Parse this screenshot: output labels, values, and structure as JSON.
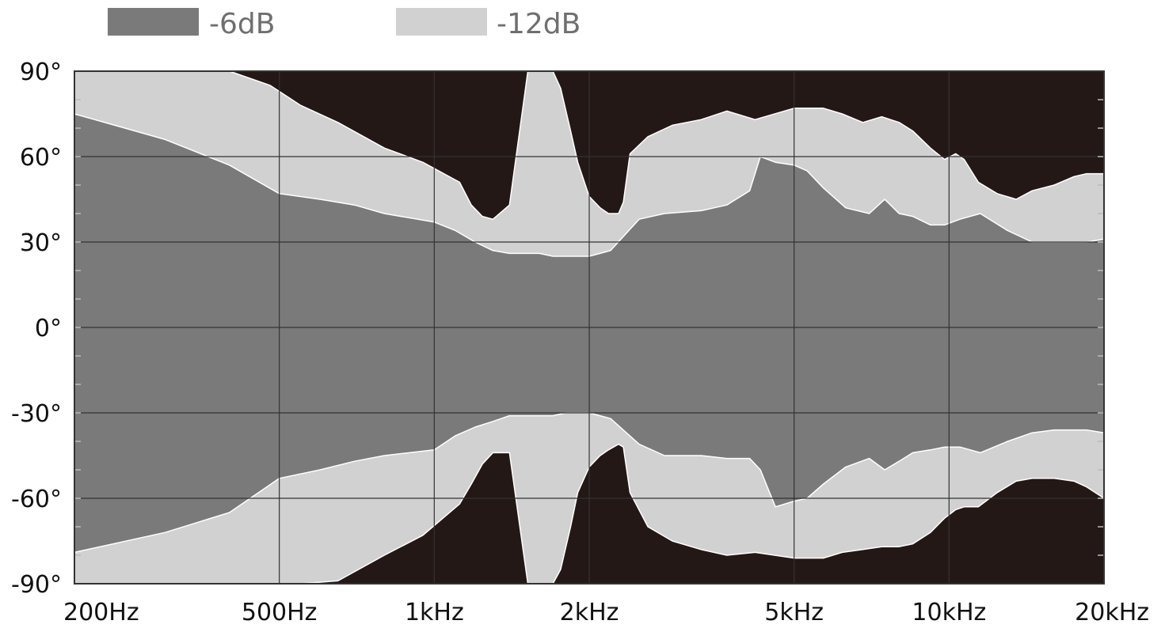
{
  "chart_data": {
    "type": "area",
    "title": "",
    "xlabel": "",
    "ylabel": "",
    "x_scale": "log",
    "xlim_hz": [
      200,
      20000
    ],
    "ylim": [
      -90,
      90
    ],
    "grid": true,
    "legend_position": "top-left",
    "x_ticks": [
      {
        "value": 200,
        "label": "200Hz"
      },
      {
        "value": 500,
        "label": "500Hz"
      },
      {
        "value": 1000,
        "label": "1kHz"
      },
      {
        "value": 2000,
        "label": "2kHz"
      },
      {
        "value": 5000,
        "label": "5kHz"
      },
      {
        "value": 10000,
        "label": "10kHz"
      },
      {
        "value": 20000,
        "label": "20kHz"
      }
    ],
    "y_ticks": [
      {
        "value": 90,
        "label": "90°"
      },
      {
        "value": 60,
        "label": "60°"
      },
      {
        "value": 30,
        "label": "30°"
      },
      {
        "value": 0,
        "label": "0°"
      },
      {
        "value": -30,
        "label": "-30°"
      },
      {
        "value": -60,
        "label": "-60°"
      },
      {
        "value": -90,
        "label": "-90°"
      }
    ],
    "colors": {
      "above_12db": "#231815",
      "grid": "#333333",
      "plot_border": "#333333"
    },
    "series": [
      {
        "name": "-12dB",
        "color": "#d1d1d1",
        "x": [
          200,
          300,
          400,
          480,
          550,
          650,
          800,
          950,
          1120,
          1180,
          1240,
          1300,
          1400,
          1520,
          1620,
          1700,
          1760,
          1840,
          1900,
          2000,
          2100,
          2180,
          2280,
          2330,
          2400,
          2600,
          2900,
          3300,
          3700,
          4200,
          5000,
          5700,
          6200,
          6800,
          7400,
          8000,
          8500,
          9200,
          9800,
          10300,
          10700,
          11400,
          12400,
          13500,
          14500,
          16000,
          17500,
          18500,
          20000
        ],
        "upper": [
          90,
          90,
          90,
          85,
          78,
          72,
          63,
          58,
          51,
          43,
          39,
          38,
          43,
          90,
          90,
          90,
          84,
          69,
          58,
          46,
          42,
          40,
          40,
          44,
          61,
          67,
          71,
          73,
          76,
          73,
          77,
          77,
          75,
          72,
          74,
          72,
          69,
          63,
          59,
          61,
          59,
          51,
          47,
          45,
          48,
          50,
          53,
          54,
          54
        ],
        "lower": [
          -90,
          -90,
          -90,
          -90,
          -90,
          -89,
          -80,
          -73,
          -62,
          -55,
          -48,
          -44,
          -44,
          -90,
          -90,
          -90,
          -85,
          -70,
          -58,
          -49,
          -45,
          -43,
          -41,
          -42,
          -58,
          -70,
          -75,
          -78,
          -80,
          -79,
          -81,
          -81,
          -79,
          -78,
          -77,
          -77,
          -76,
          -72,
          -67,
          -64,
          -63,
          -63,
          -58,
          -54,
          -53,
          -53,
          -54,
          -56,
          -60
        ]
      },
      {
        "name": "-6dB",
        "color": "#7a7a7a",
        "x": [
          200,
          300,
          400,
          500,
          600,
          700,
          800,
          1000,
          1100,
          1200,
          1300,
          1400,
          1500,
          1600,
          1700,
          1800,
          1900,
          2000,
          2200,
          2500,
          2800,
          3300,
          3700,
          4100,
          4300,
          4600,
          5000,
          5300,
          5700,
          6300,
          7000,
          7500,
          8000,
          8500,
          9200,
          9800,
          10500,
          11500,
          13000,
          14500,
          16000,
          17500,
          18500,
          20000
        ],
        "upper": [
          75,
          66,
          57,
          47,
          45,
          43,
          40,
          37,
          34,
          30,
          27,
          26,
          26,
          26,
          25,
          25,
          25,
          25,
          27,
          38,
          40,
          41,
          43,
          48,
          60,
          58,
          57,
          55,
          49,
          42,
          40,
          45,
          40,
          39,
          36,
          36,
          38,
          40,
          34,
          30,
          30,
          30,
          30,
          31
        ],
        "lower": [
          -79,
          -72,
          -65,
          -53,
          -50,
          -47,
          -45,
          -43,
          -38,
          -35,
          -33,
          -31,
          -31,
          -31,
          -31,
          -30,
          -30,
          -30,
          -32,
          -41,
          -45,
          -45,
          -46,
          -46,
          -50,
          -63,
          -61,
          -60,
          -55,
          -49,
          -46,
          -50,
          -47,
          -44,
          -43,
          -42,
          -42,
          -44,
          -40,
          -37,
          -36,
          -36,
          -36,
          -37
        ]
      }
    ]
  }
}
